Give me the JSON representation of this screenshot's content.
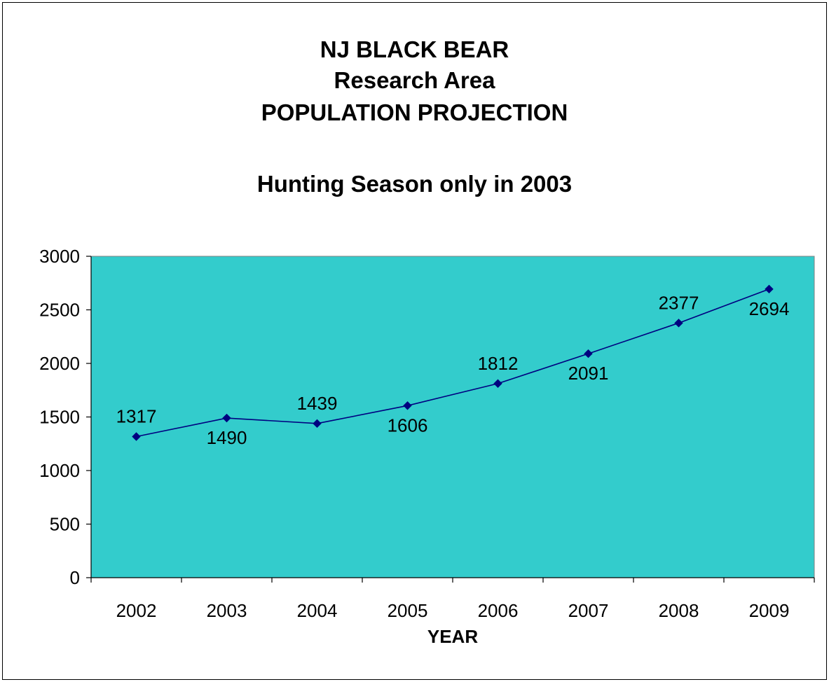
{
  "chart_data": {
    "type": "line",
    "title_lines": [
      "NJ BLACK BEAR",
      "Research Area",
      "POPULATION PROJECTION"
    ],
    "subtitle": "Hunting Season only in 2003",
    "xlabel": "YEAR",
    "ylabel": "",
    "categories": [
      "2002",
      "2003",
      "2004",
      "2005",
      "2006",
      "2007",
      "2008",
      "2009"
    ],
    "series": [
      {
        "values": [
          1317,
          1490,
          1439,
          1606,
          1812,
          2091,
          2377,
          2694
        ]
      }
    ],
    "ylim": [
      0,
      3000
    ],
    "yticks": [
      0,
      500,
      1000,
      1500,
      2000,
      2500,
      3000
    ],
    "label_positions": [
      "above",
      "below",
      "above",
      "below",
      "above",
      "below",
      "above",
      "below"
    ],
    "grid": false,
    "legend": "none",
    "colors": {
      "plot_background": "#33CCCC",
      "line": "#000080",
      "marker": "#000080",
      "frame": "#000000"
    }
  }
}
